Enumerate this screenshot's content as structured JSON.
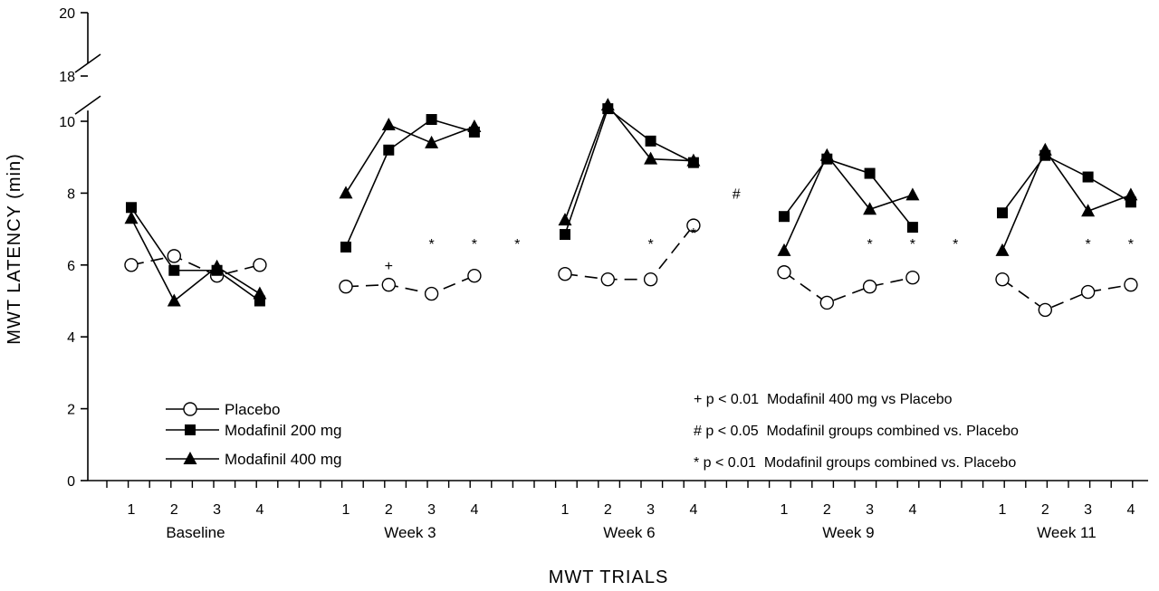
{
  "chart_data": {
    "type": "line",
    "title": "",
    "xlabel": "MWT TRIALS",
    "ylabel": "MWT LATENCY (min)",
    "ylim": [
      0,
      20
    ],
    "y_axis_break": [
      10.5,
      18
    ],
    "y_ticks": [
      "0",
      "2",
      "4",
      "6",
      "8",
      "10",
      "18",
      "20"
    ],
    "trial_labels": [
      "1",
      "2",
      "3",
      "4"
    ],
    "groups": [
      "Baseline",
      "Week 3",
      "Week 6",
      "Week 9",
      "Week 11"
    ],
    "legend_position": "bottom-left",
    "series": [
      {
        "name": "Placebo",
        "marker": "open-circle",
        "dash": true,
        "values": [
          [
            6.0,
            6.25,
            5.7,
            6.0
          ],
          [
            5.4,
            5.45,
            5.2,
            5.7
          ],
          [
            5.75,
            5.6,
            5.6,
            7.1
          ],
          [
            5.8,
            4.95,
            5.4,
            5.65
          ],
          [
            5.6,
            4.75,
            5.25,
            5.45
          ]
        ]
      },
      {
        "name": "Modafinil 200 mg",
        "marker": "filled-square",
        "dash": false,
        "values": [
          [
            7.6,
            5.85,
            5.85,
            5.0
          ],
          [
            6.5,
            9.2,
            10.05,
            9.7
          ],
          [
            6.85,
            10.35,
            9.45,
            8.85
          ],
          [
            7.35,
            8.95,
            8.55,
            7.05
          ],
          [
            7.45,
            9.05,
            8.45,
            7.75
          ]
        ]
      },
      {
        "name": "Modafinil 400 mg",
        "marker": "filled-triangle",
        "dash": false,
        "values": [
          [
            7.3,
            5.0,
            5.95,
            5.2
          ],
          [
            8.0,
            9.9,
            9.4,
            9.85
          ],
          [
            7.25,
            10.45,
            8.95,
            8.9
          ],
          [
            6.4,
            9.05,
            7.55,
            7.95
          ],
          [
            6.4,
            9.2,
            7.5,
            7.95
          ]
        ]
      }
    ],
    "significance_marks": [
      {
        "group": 1,
        "trial": 1,
        "symbol": "+",
        "y": 6.0
      },
      {
        "group": 1,
        "trial": 2,
        "symbol": "*",
        "y": 6.6
      },
      {
        "group": 1,
        "trial": 3,
        "symbol": "*",
        "y": 6.6
      },
      {
        "group": 1,
        "trial": 4,
        "symbol": "*",
        "y": 6.6
      },
      {
        "group": 2,
        "trial": 2,
        "symbol": "*",
        "y": 6.6
      },
      {
        "group": 2,
        "trial": 3,
        "symbol": "*",
        "y": 6.9
      },
      {
        "group": 2,
        "trial": 4,
        "symbol": "#",
        "y": 8.0
      },
      {
        "group": 3,
        "trial": 2,
        "symbol": "*",
        "y": 6.6
      },
      {
        "group": 3,
        "trial": 3,
        "symbol": "*",
        "y": 6.6
      },
      {
        "group": 3,
        "trial": 4,
        "symbol": "*",
        "y": 6.6
      },
      {
        "group": 4,
        "trial": 2,
        "symbol": "*",
        "y": 6.6
      },
      {
        "group": 4,
        "trial": 3,
        "symbol": "*",
        "y": 6.6
      },
      {
        "group": 4,
        "trial": 4,
        "symbol": "*",
        "y": 6.6
      }
    ],
    "significance_legend": [
      "+ p < 0.01  Modafinil 400 mg vs Placebo",
      "# p < 0.05  Modafinil groups combined vs. Placebo",
      "* p < 0.01  Modafinil groups combined vs. Placebo"
    ]
  }
}
